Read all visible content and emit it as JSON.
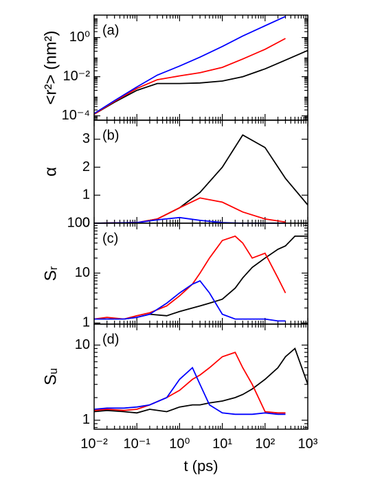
{
  "chart_data": [
    {
      "type": "line",
      "panel_label": "(a)",
      "ylabel": "<r²> (nm²)",
      "xscale": "log",
      "yscale": "log",
      "xlim": [
        0.01,
        1000
      ],
      "xticks": [
        0.01,
        0.1,
        1,
        10,
        100,
        1000
      ],
      "ylim": [
        6e-05,
        14
      ],
      "yticks": [
        {
          "value": 0.0001,
          "label": "10⁻⁴"
        },
        {
          "value": 0.01,
          "label": "10⁻²"
        },
        {
          "value": 1,
          "label": "10⁰"
        }
      ],
      "x": [
        0.01,
        0.03,
        0.1,
        0.3,
        1,
        3,
        10,
        30,
        100,
        300,
        1000
      ],
      "series": [
        {
          "color": "#000000",
          "values": [
            0.00012,
            0.0005,
            0.002,
            0.0045,
            0.0045,
            0.0048,
            0.006,
            0.01,
            0.025,
            0.07,
            0.22
          ]
        },
        {
          "color": "#ff0000",
          "values": [
            0.00012,
            0.00055,
            0.0025,
            0.007,
            0.011,
            0.016,
            0.03,
            0.08,
            0.25,
            0.9,
            null
          ]
        },
        {
          "color": "#0000ff",
          "values": [
            0.00013,
            0.0006,
            0.003,
            0.012,
            0.035,
            0.1,
            0.35,
            1.2,
            4,
            12,
            null
          ]
        }
      ]
    },
    {
      "type": "line",
      "panel_label": "(b)",
      "ylabel": "α",
      "xscale": "log",
      "yscale": "linear",
      "xlim": [
        0.01,
        1000
      ],
      "xticks": [
        0.01,
        0.1,
        1,
        10,
        100,
        1000
      ],
      "ylim": [
        0,
        3.68
      ],
      "yticks": [
        0,
        1,
        2,
        3
      ],
      "x": [
        0.01,
        0.1,
        0.3,
        1,
        3,
        10,
        30,
        100,
        300,
        1000
      ],
      "series": [
        {
          "color": "#000000",
          "values": [
            0,
            0.02,
            0.15,
            0.55,
            1.1,
            2.0,
            3.15,
            2.7,
            1.6,
            0.65
          ]
        },
        {
          "color": "#ff0000",
          "values": [
            0,
            0.02,
            0.15,
            0.55,
            0.9,
            0.75,
            0.4,
            0.15,
            0.04,
            null
          ]
        },
        {
          "color": "#0000ff",
          "values": [
            0,
            0.02,
            0.12,
            0.2,
            0.1,
            0.02,
            0,
            0,
            0,
            null
          ]
        }
      ]
    },
    {
      "type": "line",
      "panel_label": "(c)",
      "ylabel": "Sᵣ",
      "xscale": "log",
      "yscale": "log",
      "xlim": [
        0.01,
        1000
      ],
      "xticks": [
        0.01,
        0.1,
        1,
        10,
        100,
        1000
      ],
      "ylim": [
        0.95,
        100
      ],
      "yticks": [
        1,
        10,
        100
      ],
      "x": [
        0.01,
        0.02,
        0.05,
        0.1,
        0.2,
        0.5,
        1,
        2,
        3,
        5,
        10,
        20,
        30,
        50,
        100,
        200,
        300,
        500,
        1000
      ],
      "series": [
        {
          "color": "#000000",
          "values": [
            1.2,
            1.2,
            1.2,
            1.3,
            1.5,
            1.4,
            1.7,
            2,
            2.2,
            2.5,
            3,
            5,
            8,
            13,
            20,
            30,
            35,
            55,
            55
          ]
        },
        {
          "color": "#ff0000",
          "values": [
            1.2,
            1.3,
            1.2,
            1.4,
            1.6,
            2.2,
            3.5,
            6,
            10,
            20,
            45,
            55,
            40,
            20,
            25,
            8,
            4,
            null,
            null
          ]
        },
        {
          "color": "#0000ff",
          "values": [
            1.2,
            1.2,
            1.2,
            1.3,
            1.5,
            2.5,
            4,
            6,
            7,
            4,
            1.5,
            1.2,
            1.2,
            1.2,
            1.2,
            1.1,
            1.1,
            null,
            null
          ]
        }
      ]
    },
    {
      "type": "line",
      "panel_label": "(d)",
      "ylabel": "Sᵤ",
      "xlabel": "t (ps)",
      "xscale": "log",
      "yscale": "log",
      "xlim": [
        0.01,
        1000
      ],
      "xticks": [
        {
          "value": 0.01,
          "label": "10⁻²"
        },
        {
          "value": 0.1,
          "label": "10⁻¹"
        },
        {
          "value": 1,
          "label": "10⁰"
        },
        {
          "value": 10,
          "label": "10¹"
        },
        {
          "value": 100,
          "label": "10²"
        },
        {
          "value": 1000,
          "label": "10³"
        }
      ],
      "ylim": [
        0.76,
        19
      ],
      "yticks": [
        1,
        10
      ],
      "x": [
        0.01,
        0.02,
        0.05,
        0.1,
        0.2,
        0.5,
        1,
        2,
        3,
        5,
        10,
        20,
        30,
        50,
        100,
        200,
        300,
        500,
        1000
      ],
      "series": [
        {
          "color": "#000000",
          "values": [
            1.3,
            1.35,
            1.3,
            1.25,
            1.4,
            1.3,
            1.5,
            1.6,
            1.6,
            1.7,
            1.8,
            2,
            2.2,
            2.6,
            3.5,
            5,
            7,
            9,
            3
          ]
        },
        {
          "color": "#ff0000",
          "values": [
            1.35,
            1.4,
            1.35,
            1.4,
            1.6,
            2,
            2.5,
            3.5,
            4,
            5,
            7,
            8,
            5,
            3,
            1.3,
            1.25,
            1.25,
            null,
            null
          ]
        },
        {
          "color": "#0000ff",
          "values": [
            1.4,
            1.45,
            1.45,
            1.5,
            1.6,
            2,
            3.5,
            5,
            3,
            1.6,
            1.25,
            1.2,
            1.2,
            1.2,
            1.25,
            1.2,
            1.2,
            null,
            null
          ]
        }
      ]
    }
  ]
}
